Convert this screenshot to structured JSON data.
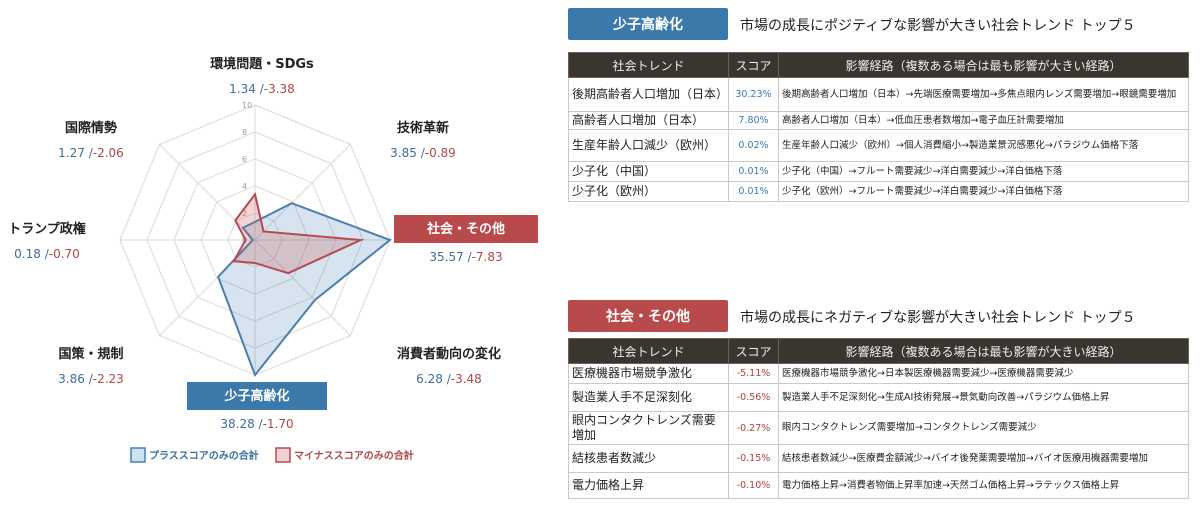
{
  "chart_data": {
    "type": "radar",
    "max": 10,
    "ticks": [
      "0",
      "2",
      "4",
      "6",
      "8",
      "10"
    ],
    "axes": [
      {
        "label": "環境問題・SDGs",
        "plus": 1.34,
        "minus": -3.38,
        "plus_text": "1.34",
        "minus_text": "-3.38",
        "highlight": "none"
      },
      {
        "label": "技術革新",
        "plus": 3.85,
        "minus": -0.89,
        "plus_text": "3.85",
        "minus_text": "-0.89",
        "highlight": "none"
      },
      {
        "label": "社会・その他",
        "plus": 35.57,
        "minus": -7.83,
        "plus_text": "35.57",
        "minus_text": "-7.83",
        "highlight": "negative"
      },
      {
        "label": "消費者動向の変化",
        "plus": 6.28,
        "minus": -3.48,
        "plus_text": "6.28",
        "minus_text": "-3.48",
        "highlight": "none"
      },
      {
        "label": "少子高齢化",
        "plus": 38.28,
        "minus": -1.7,
        "plus_text": "38.28",
        "minus_text": "-1.70",
        "highlight": "positive"
      },
      {
        "label": "国策・規制",
        "plus": 3.86,
        "minus": -2.23,
        "plus_text": "3.86",
        "minus_text": "-2.23",
        "highlight": "none"
      },
      {
        "label": "トランプ政権",
        "plus": 0.18,
        "minus": -0.7,
        "plus_text": "0.18",
        "minus_text": "-0.70",
        "highlight": "none"
      },
      {
        "label": "国際情勢",
        "plus": 1.27,
        "minus": -2.06,
        "plus_text": "1.27",
        "minus_text": "-2.06",
        "highlight": "none"
      }
    ],
    "separator": "/",
    "legend": [
      {
        "name": "プラススコアのみの合計",
        "color": "#4a7fb0"
      },
      {
        "name": "マイナススコアのみの合計",
        "color": "#b54a50"
      }
    ],
    "legend_position": "bottom"
  },
  "colors": {
    "positive": "#3b79aa",
    "negative": "#b94a4c",
    "table_header": "#3b3530"
  },
  "positive_panel": {
    "badge": "少子高齢化",
    "title": "市場の成長にポジティブな影響が大きい社会トレンド トップ５",
    "headers": [
      "社会トレンド",
      "スコア",
      "影響経路（複数ある場合は最も影響が大きい経路）"
    ],
    "rows": [
      {
        "trend": "後期高齢者人口増加（日本）",
        "score": "30.23%",
        "route": "後期高齢者人口増加（日本）→先端医療需要増加→多焦点眼内レンズ需要増加→眼鏡需要増加"
      },
      {
        "trend": "高齢者人口増加（日本）",
        "score": "7.80%",
        "route": "高齢者人口増加（日本）→低血圧患者数増加→電子血圧計需要増加"
      },
      {
        "trend": "生産年齢人口減少（欧州）",
        "score": "0.02%",
        "route": "生産年齢人口減少（欧州）→個人消費縮小→製造業景況感悪化→パラジウム価格下落"
      },
      {
        "trend": "少子化（中国）",
        "score": "0.01%",
        "route": "少子化（中国）→フルート需要減少→洋白需要減少→洋白価格下落"
      },
      {
        "trend": "少子化（欧州）",
        "score": "0.01%",
        "route": "少子化（欧州）→フルート需要減少→洋白需要減少→洋白価格下落"
      }
    ]
  },
  "negative_panel": {
    "badge": "社会・その他",
    "title": "市場の成長にネガティブな影響が大きい社会トレンド トップ５",
    "headers": [
      "社会トレンド",
      "スコア",
      "影響経路（複数ある場合は最も影響が大きい経路）"
    ],
    "rows": [
      {
        "trend": "医療機器市場競争激化",
        "score": "-5.11%",
        "route": "医療機器市場競争激化→日本製医療機器需要減少→医療機器需要減少"
      },
      {
        "trend": "製造業人手不足深刻化",
        "score": "-0.56%",
        "route": "製造業人手不足深刻化→生成AI技術発展→景気動向改善→パラジウム価格上昇"
      },
      {
        "trend": "眼内コンタクトレンズ需要増加",
        "score": "-0.27%",
        "route": "眼内コンタクトレンズ需要増加→コンタクトレンズ需要減少"
      },
      {
        "trend": "結核患者数減少",
        "score": "-0.15%",
        "route": "結核患者数減少→医療費金額減少→バイオ後発薬需要増加→バイオ医療用機器需要増加"
      },
      {
        "trend": "電力価格上昇",
        "score": "-0.10%",
        "route": "電力価格上昇→消費者物価上昇率加速→天然ゴム価格上昇→ラテックス価格上昇"
      }
    ]
  }
}
